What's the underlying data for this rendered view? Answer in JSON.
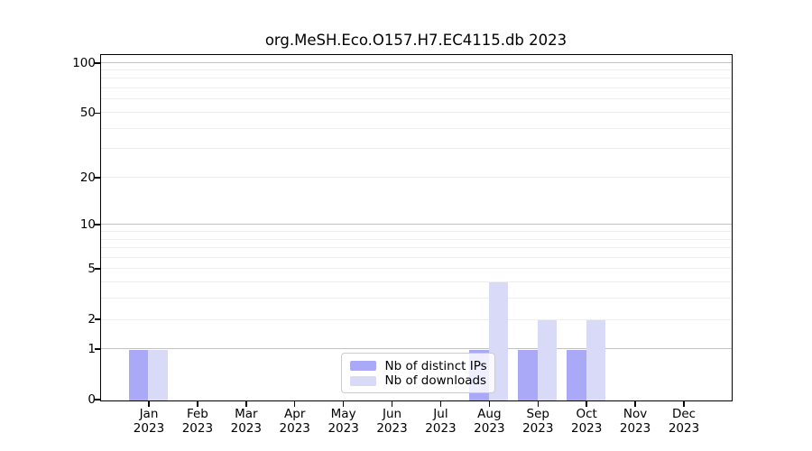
{
  "chart_data": {
    "type": "bar",
    "title": "org.MeSH.Eco.O157.H7.EC4115.db 2023",
    "categories": [
      {
        "month": "Jan",
        "year": "2023"
      },
      {
        "month": "Feb",
        "year": "2023"
      },
      {
        "month": "Mar",
        "year": "2023"
      },
      {
        "month": "Apr",
        "year": "2023"
      },
      {
        "month": "May",
        "year": "2023"
      },
      {
        "month": "Jun",
        "year": "2023"
      },
      {
        "month": "Jul",
        "year": "2023"
      },
      {
        "month": "Aug",
        "year": "2023"
      },
      {
        "month": "Sep",
        "year": "2023"
      },
      {
        "month": "Oct",
        "year": "2023"
      },
      {
        "month": "Nov",
        "year": "2023"
      },
      {
        "month": "Dec",
        "year": "2023"
      }
    ],
    "series": [
      {
        "name": "Nb of distinct IPs",
        "color": "#a9a9f8",
        "values": [
          1,
          0,
          0,
          0,
          0,
          0,
          0,
          1,
          1,
          1,
          0,
          0
        ]
      },
      {
        "name": "Nb of downloads",
        "color": "#d9d9f8",
        "values": [
          1,
          0,
          0,
          0,
          0,
          0,
          0,
          4,
          2,
          2,
          0,
          0
        ]
      }
    ],
    "y_axis": {
      "scale": "log10(1+v)",
      "ticks": [
        100,
        50,
        20,
        10,
        5,
        2,
        1,
        0
      ],
      "ylim": [
        0,
        112
      ],
      "gridlines_major": [
        1,
        10,
        100
      ],
      "gridlines_minor": [
        2,
        3,
        4,
        5,
        6,
        7,
        8,
        9,
        20,
        30,
        40,
        50,
        60,
        70,
        80,
        90
      ],
      "grid": "on"
    },
    "xlabel": "",
    "ylabel": "",
    "legend_position": "inside-bottom-center"
  },
  "colors": {
    "grid_major": "#c2c2c2",
    "grid_minor": "#ededed",
    "spine": "#000000",
    "background": "#ffffff",
    "legend_border": "#cbcbcb"
  }
}
